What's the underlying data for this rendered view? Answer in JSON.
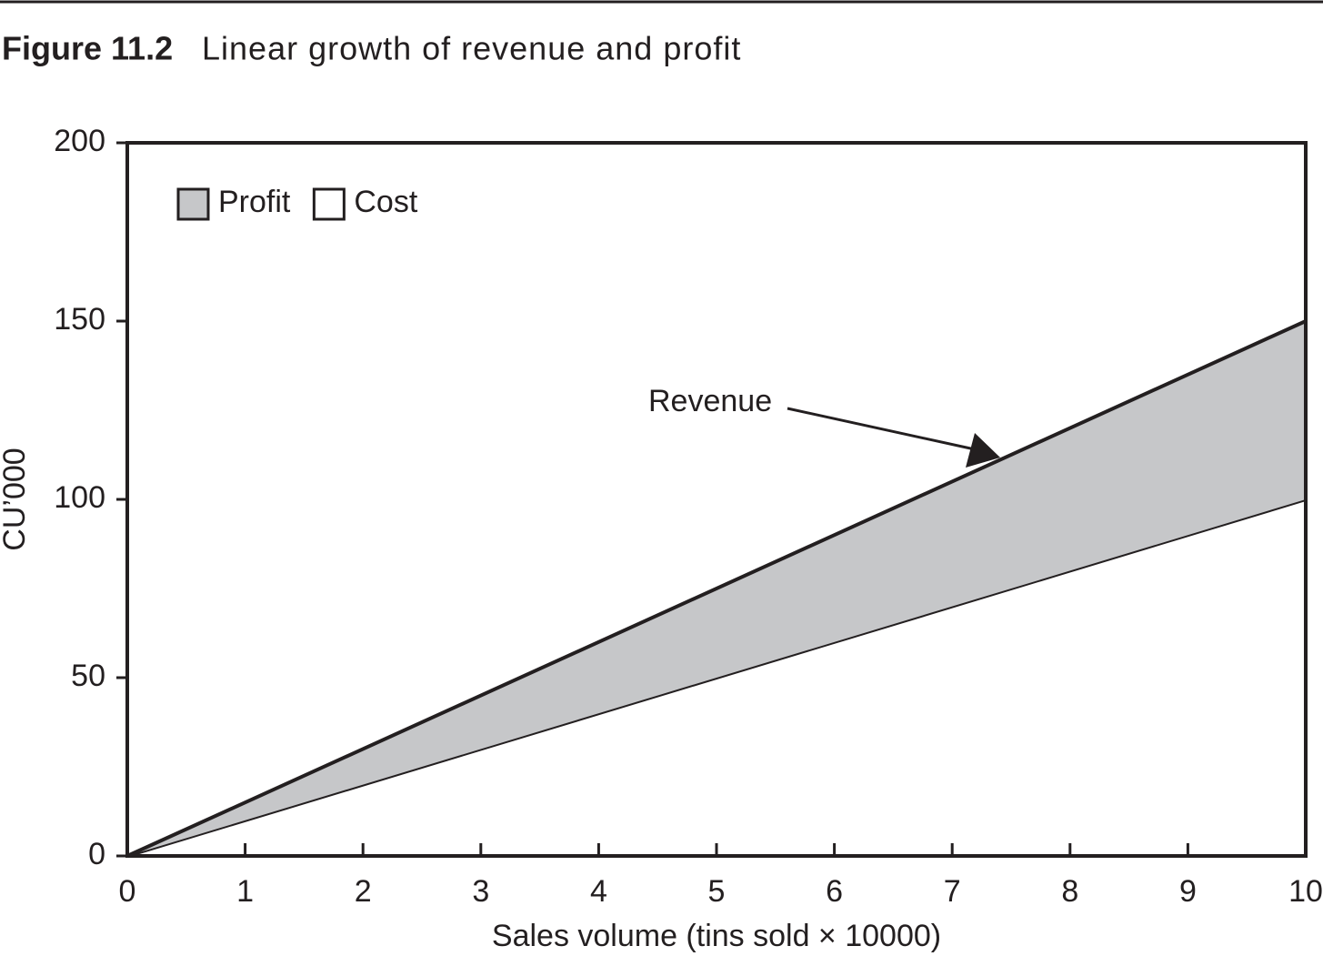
{
  "chart_data": {
    "type": "area",
    "stacked": true,
    "figure_label": "Figure 11.2",
    "title": "Linear growth of revenue and profit",
    "x_label": "Sales volume (tins sold × 10000)",
    "y_label": "CU’000",
    "annotation": "Revenue",
    "x": [
      0,
      10
    ],
    "series": [
      {
        "name": "Profit",
        "color": "#c6c7c9",
        "values": [
          0,
          50
        ]
      },
      {
        "name": "Cost",
        "color": "#ffffff",
        "values": [
          0,
          100
        ]
      }
    ],
    "xlim": [
      0,
      10
    ],
    "xticks": [
      0,
      1,
      2,
      3,
      4,
      5,
      6,
      7,
      8,
      9,
      10
    ],
    "ylim": [
      0,
      200
    ],
    "yticks": [
      0,
      50,
      100,
      150,
      200
    ],
    "legend": "top-left",
    "grid": false
  }
}
